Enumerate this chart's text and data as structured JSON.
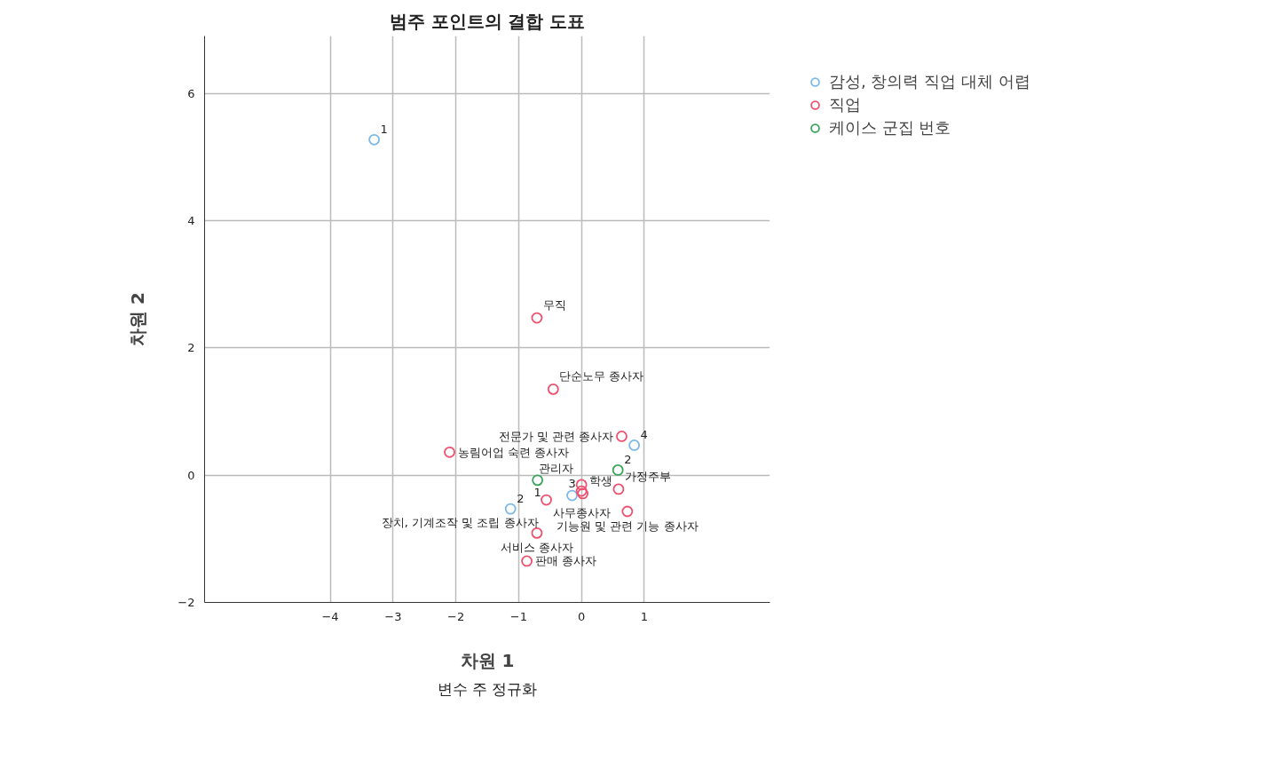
{
  "chart_data": {
    "type": "scatter",
    "title": "범주 포인트의 결합 도표",
    "xlabel": "차원 1",
    "ylabel": "차원 2",
    "series": [
      {
        "name": "감성, 창의력 직업 대체 어렵",
        "color": "#7cb8e8",
        "x": [
          -3.3,
          -1.13,
          -0.15,
          0.84
        ],
        "values": [
          5.27,
          -0.53,
          -0.32,
          0.47
        ]
      },
      {
        "name": "직업",
        "color": "#f0506e",
        "x": [
          -0.71,
          -0.45,
          0.64,
          -2.1,
          0.0,
          0.0,
          0.02,
          0.59,
          0.73,
          -0.56,
          -0.71,
          -0.87
        ],
        "values": [
          2.47,
          1.35,
          0.61,
          0.36,
          -0.15,
          -0.25,
          -0.29,
          -0.22,
          -0.57,
          -0.39,
          -0.91,
          -1.35
        ]
      },
      {
        "name": "케이스 군집 번호",
        "color": "#3aa55a",
        "x": [
          -0.7,
          0.58
        ],
        "values": [
          -0.08,
          0.08
        ]
      }
    ],
    "annotations": [
      {
        "text": "1",
        "x": -3.3,
        "y": 5.27
      },
      {
        "text": "2",
        "x": -1.13,
        "y": -0.53
      },
      {
        "text": "3",
        "x": -0.15,
        "y": -0.32
      },
      {
        "text": "4",
        "x": 0.84,
        "y": 0.47
      },
      {
        "text": "무직",
        "x": -0.71,
        "y": 2.47
      },
      {
        "text": "단순노무 종사자",
        "x": -0.45,
        "y": 1.35
      },
      {
        "text": "전문가 및 관련 종사자",
        "x": 0.64,
        "y": 0.61
      },
      {
        "text": "농림어업 숙련 종사자",
        "x": -2.1,
        "y": 0.36
      },
      {
        "text": "사무종사자",
        "x": 0.0,
        "y": -0.15
      },
      {
        "text": "관리자",
        "x": 0.0,
        "y": -0.25
      },
      {
        "text": "학생",
        "x": 0.02,
        "y": -0.29
      },
      {
        "text": "가정주부",
        "x": 0.59,
        "y": -0.22
      },
      {
        "text": "기능원 및 관련 기능 종사자",
        "x": 0.73,
        "y": -0.57
      },
      {
        "text": "장치, 기계조작 및 조립 종사자",
        "x": -0.56,
        "y": -0.39
      },
      {
        "text": "서비스 종사자",
        "x": -0.71,
        "y": -0.91
      },
      {
        "text": "판매 종사자",
        "x": -0.87,
        "y": -1.35
      },
      {
        "text": "1",
        "x": -0.7,
        "y": -0.08
      },
      {
        "text": "2",
        "x": 0.58,
        "y": 0.08
      },
      "변수 주 정규화"
    ],
    "xlim": [
      -6,
      3
    ],
    "ylim": [
      -2,
      6.9
    ],
    "xticks": [
      -4,
      -3,
      -2,
      -1,
      0,
      1
    ],
    "yticks": [
      -2,
      0,
      2,
      4,
      6
    ],
    "grid": true,
    "legend": "top right",
    "marker": "circle"
  }
}
